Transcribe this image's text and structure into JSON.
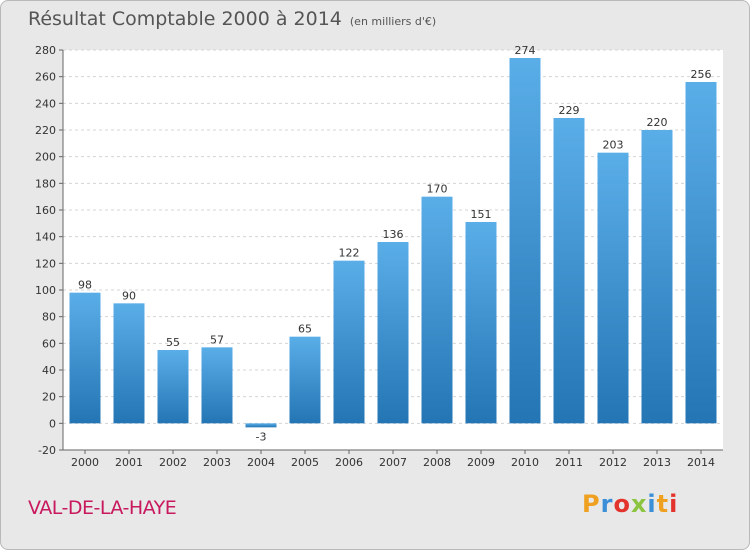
{
  "title": "Résultat Comptable 2000 à 2014",
  "subtitle": "(en milliers d'€)",
  "commune": "VAL-DE-LA-HAYE",
  "logo_text": "Proxiti",
  "colors": {
    "bar_top": "#5aaee8",
    "bar_bottom": "#2475b4",
    "background": "#e8e8e8",
    "plot_background": "#ffffff",
    "place": "#c8185e"
  },
  "chart_data": {
    "type": "bar",
    "categories": [
      "2000",
      "2001",
      "2002",
      "2003",
      "2004",
      "2005",
      "2006",
      "2007",
      "2008",
      "2009",
      "2010",
      "2011",
      "2012",
      "2013",
      "2014"
    ],
    "values": [
      98,
      90,
      55,
      57,
      -3,
      65,
      122,
      136,
      170,
      151,
      274,
      229,
      203,
      220,
      256
    ],
    "title": "Résultat Comptable 2000 à 2014",
    "ylim": [
      -20,
      280
    ],
    "yticks": [
      -20,
      0,
      20,
      40,
      60,
      80,
      100,
      120,
      140,
      160,
      180,
      200,
      220,
      240,
      260,
      280
    ],
    "grid": true,
    "legend": false
  }
}
